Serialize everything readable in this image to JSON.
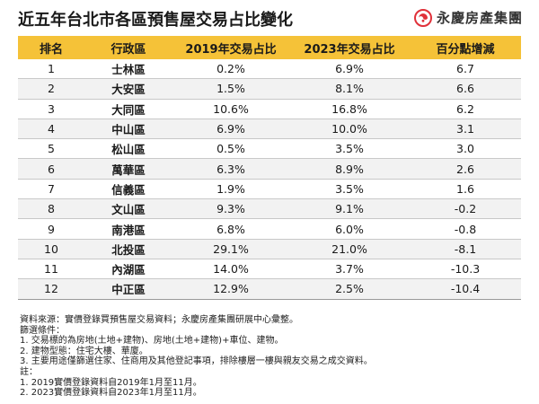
{
  "title": "近五年台北市各區預售屋交易占比變化",
  "brand": {
    "name": "永慶房產集團",
    "color": "#e0313a",
    "icon": "swirl-logo-icon"
  },
  "colors": {
    "header_bg": "#f5c238",
    "row_shade": "#f2f2f2"
  },
  "table": {
    "headers": [
      "排名",
      "行政區",
      "2019年交易占比",
      "2023年交易占比",
      "百分點增減"
    ],
    "rows": [
      {
        "rank": "1",
        "district": "士林區",
        "y2019": "0.2%",
        "y2023": "6.9%",
        "change": "6.7"
      },
      {
        "rank": "2",
        "district": "大安區",
        "y2019": "1.5%",
        "y2023": "8.1%",
        "change": "6.6"
      },
      {
        "rank": "3",
        "district": "大同區",
        "y2019": "10.6%",
        "y2023": "16.8%",
        "change": "6.2"
      },
      {
        "rank": "4",
        "district": "中山區",
        "y2019": "6.9%",
        "y2023": "10.0%",
        "change": "3.1"
      },
      {
        "rank": "5",
        "district": "松山區",
        "y2019": "0.5%",
        "y2023": "3.5%",
        "change": "3.0"
      },
      {
        "rank": "6",
        "district": "萬華區",
        "y2019": "6.3%",
        "y2023": "8.9%",
        "change": "2.6"
      },
      {
        "rank": "7",
        "district": "信義區",
        "y2019": "1.9%",
        "y2023": "3.5%",
        "change": "1.6"
      },
      {
        "rank": "8",
        "district": "文山區",
        "y2019": "9.3%",
        "y2023": "9.1%",
        "change": "-0.2"
      },
      {
        "rank": "9",
        "district": "南港區",
        "y2019": "6.8%",
        "y2023": "6.0%",
        "change": "-0.8"
      },
      {
        "rank": "10",
        "district": "北投區",
        "y2019": "29.1%",
        "y2023": "21.0%",
        "change": "-8.1"
      },
      {
        "rank": "11",
        "district": "內湖區",
        "y2019": "14.0%",
        "y2023": "3.7%",
        "change": "-10.3"
      },
      {
        "rank": "12",
        "district": "中正區",
        "y2019": "12.9%",
        "y2023": "2.5%",
        "change": "-10.4"
      }
    ]
  },
  "notes": [
    "資料來源：實價登錄買預售屋交易資料；永慶房產集團研展中心彙整。",
    "篩選條件：",
    "1. 交易標的為房地(土地+建物)、房地(土地+建物)+車位、建物。",
    "2. 建物型態：住宅大樓、華廈。",
    "3. 主要用途僅篩選住家、住商用及其他登記事項，排除樓層一樓與親友交易之成交資料。",
    "註：",
    "1. 2019實價登錄資料自2019年1月至11月。",
    "2. 2023實價登錄資料自2023年1月至11月。"
  ]
}
